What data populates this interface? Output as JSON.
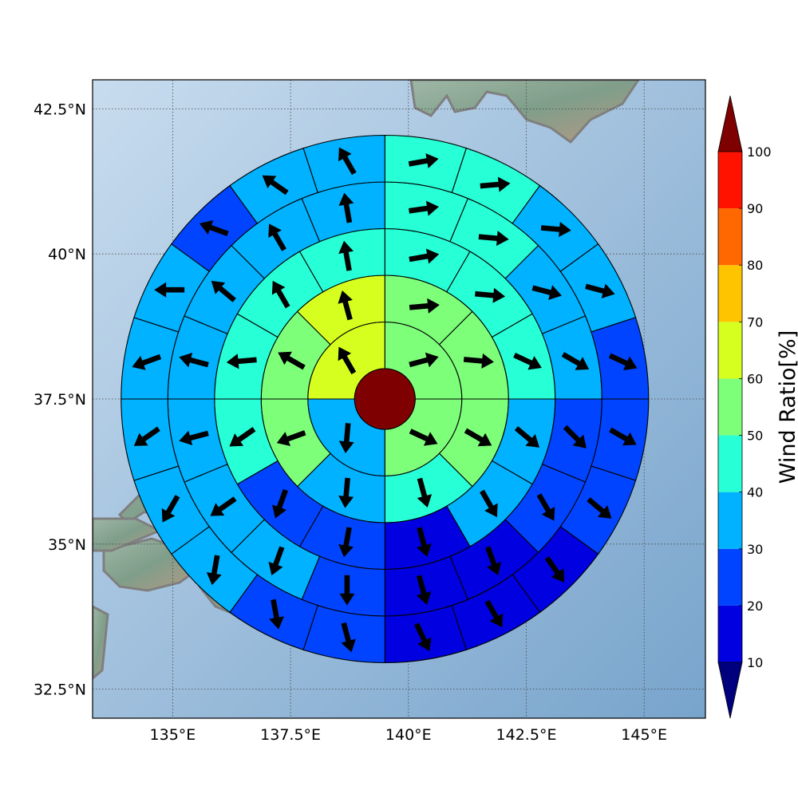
{
  "chart_data": {
    "type": "heatmap",
    "title": "",
    "xlabel": "",
    "ylabel": "",
    "x_tick_labels": [
      "135°E",
      "137.5°E",
      "140°E",
      "142.5°E",
      "145°E"
    ],
    "y_tick_labels": [
      "32.5°N",
      "35°N",
      "37.5°N",
      "40°N",
      "42.5°N"
    ],
    "x_ticks": [
      135,
      137.5,
      140,
      142.5,
      145
    ],
    "y_ticks": [
      32.5,
      35,
      37.5,
      40,
      42.5
    ],
    "xlim": [
      133.3,
      146.3
    ],
    "ylim": [
      32,
      43
    ],
    "grid": true,
    "center": {
      "lon": 139.5,
      "lat": 37.5
    },
    "colorbar": {
      "label": "Wind Ratio[%]",
      "tick_labels": [
        "10",
        "20",
        "30",
        "40",
        "50",
        "60",
        "70",
        "80",
        "90",
        "100"
      ],
      "bounds": [
        10,
        20,
        30,
        40,
        50,
        60,
        70,
        80,
        90,
        100
      ],
      "colors": [
        "#0000e0",
        "#0044ff",
        "#00b2ff",
        "#27ffd7",
        "#7dff7a",
        "#d6ff20",
        "#ffc400",
        "#ff6800",
        "#ff1300"
      ],
      "under_color": "#00007f",
      "over_color": "#7f0000",
      "extend": "both"
    },
    "center_value": 100,
    "rings": [
      {
        "ring": 1,
        "sectors": 4,
        "values": [
          55,
          55,
          35,
          65
        ]
      },
      {
        "ring": 2,
        "sectors": 8,
        "values": [
          55,
          55,
          55,
          45,
          35,
          55,
          55,
          65
        ]
      },
      {
        "ring": 3,
        "sectors": 12,
        "values": [
          45,
          45,
          45,
          35,
          35,
          15,
          25,
          25,
          45,
          45,
          45,
          45
        ]
      },
      {
        "ring": 4,
        "sectors": 16,
        "values": [
          45,
          45,
          35,
          35,
          25,
          25,
          15,
          15,
          25,
          35,
          35,
          35,
          35,
          35,
          35,
          35
        ]
      },
      {
        "ring": 5,
        "sectors": 20,
        "values": [
          45,
          45,
          35,
          35,
          25,
          25,
          25,
          15,
          15,
          15,
          25,
          25,
          35,
          35,
          35,
          35,
          35,
          25,
          35,
          35
        ]
      }
    ],
    "arrows": [
      {
        "ring": 1,
        "dirs": [
          75,
          115,
          185,
          330
        ]
      },
      {
        "ring": 2,
        "dirs": [
          85,
          95,
          120,
          165,
          185,
          250,
          300,
          345
        ]
      },
      {
        "ring": 3,
        "dirs": [
          80,
          95,
          115,
          130,
          150,
          165,
          190,
          200,
          235,
          265,
          330,
          350
        ]
      },
      {
        "ring": 4,
        "dirs": [
          82,
          95,
          105,
          120,
          135,
          150,
          160,
          165,
          180,
          200,
          235,
          255,
          285,
          310,
          330,
          350
        ]
      },
      {
        "ring": 5,
        "dirs": [
          80,
          85,
          95,
          105,
          115,
          120,
          130,
          145,
          150,
          155,
          165,
          170,
          190,
          210,
          235,
          250,
          270,
          290,
          305,
          330
        ]
      }
    ]
  }
}
